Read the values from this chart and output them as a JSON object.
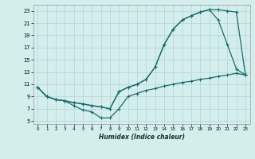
{
  "xlabel": "Humidex (Indice chaleur)",
  "bg_color": "#d4eeee",
  "grid_color": "#b8d8d8",
  "line_color": "#1a6b6b",
  "xlim": [
    -0.5,
    23.5
  ],
  "ylim": [
    4.5,
    24
  ],
  "xticks": [
    0,
    1,
    2,
    3,
    4,
    5,
    6,
    7,
    8,
    9,
    10,
    11,
    12,
    13,
    14,
    15,
    16,
    17,
    18,
    19,
    20,
    21,
    22,
    23
  ],
  "yticks": [
    5,
    7,
    9,
    11,
    13,
    15,
    17,
    19,
    21,
    23
  ],
  "line1_x": [
    0,
    1,
    2,
    3,
    4,
    5,
    6,
    7,
    8,
    9,
    10,
    11,
    12,
    13,
    14,
    15,
    16,
    17,
    18,
    19,
    20,
    21,
    22,
    23
  ],
  "line1_y": [
    10.5,
    9.0,
    8.5,
    8.3,
    8.0,
    7.8,
    7.5,
    7.3,
    7.0,
    9.8,
    10.5,
    11.0,
    11.8,
    13.8,
    17.5,
    20.0,
    21.5,
    22.2,
    22.8,
    23.2,
    23.2,
    23.0,
    22.8,
    12.5
  ],
  "line2_x": [
    0,
    1,
    2,
    3,
    4,
    5,
    6,
    7,
    8,
    9,
    10,
    11,
    12,
    13,
    14,
    15,
    16,
    17,
    18,
    19,
    20,
    21,
    22,
    23
  ],
  "line2_y": [
    10.5,
    9.0,
    8.5,
    8.3,
    8.0,
    7.8,
    7.5,
    7.3,
    7.0,
    9.8,
    10.5,
    11.0,
    11.8,
    13.8,
    17.5,
    20.0,
    21.5,
    22.2,
    22.8,
    23.2,
    21.5,
    17.5,
    13.5,
    12.5
  ],
  "line3_x": [
    0,
    1,
    2,
    3,
    4,
    5,
    6,
    7,
    8,
    9,
    10,
    11,
    12,
    13,
    14,
    15,
    16,
    17,
    18,
    19,
    20,
    21,
    22,
    23
  ],
  "line3_y": [
    10.5,
    9.0,
    8.5,
    8.3,
    7.5,
    6.8,
    6.5,
    5.5,
    5.5,
    7.0,
    9.0,
    9.5,
    10.0,
    10.3,
    10.7,
    11.0,
    11.3,
    11.5,
    11.8,
    12.0,
    12.3,
    12.5,
    12.8,
    12.5
  ]
}
